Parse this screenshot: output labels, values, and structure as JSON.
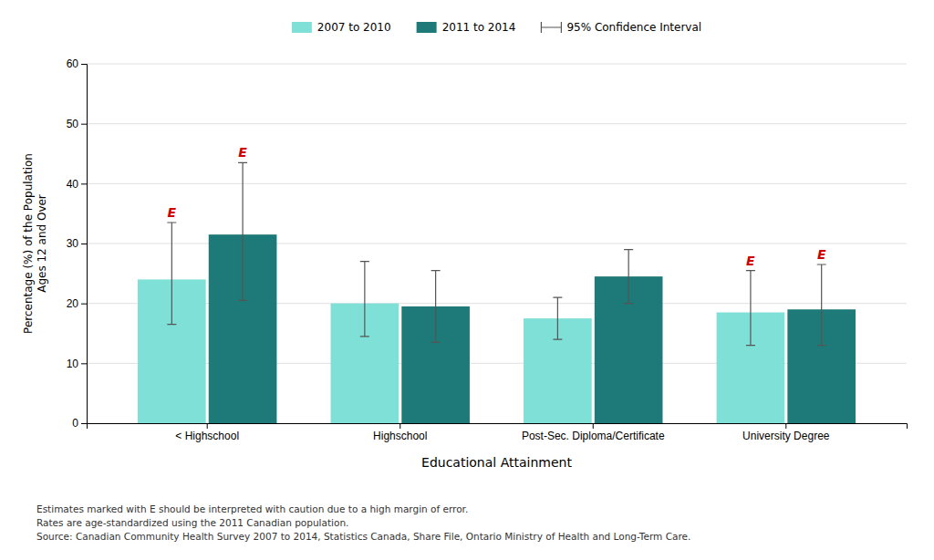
{
  "chart_data": {
    "type": "bar",
    "xlabel": "Educational Attainment",
    "ylabel": "Percentage (%) of the Population\nAges 12 and Over",
    "categories": [
      "< Highschool",
      "Highschool",
      "Post-Sec. Diploma/Certificate",
      "University Degree"
    ],
    "series": [
      {
        "name": "2007 to 2010",
        "color": "#7FE0D8",
        "values": [
          24.0,
          20.0,
          17.5,
          18.5
        ],
        "ci_lower": [
          16.5,
          14.5,
          14.0,
          13.0
        ],
        "ci_upper": [
          33.5,
          27.0,
          21.0,
          25.5
        ],
        "annotations": [
          "E",
          null,
          null,
          "E"
        ]
      },
      {
        "name": "2011 to 2014",
        "color": "#1E7A78",
        "values": [
          31.5,
          19.5,
          24.5,
          19.0
        ],
        "ci_lower": [
          20.5,
          13.5,
          20.0,
          13.0
        ],
        "ci_upper": [
          43.5,
          25.5,
          29.0,
          26.5
        ],
        "annotations": [
          "E",
          null,
          null,
          "E"
        ]
      }
    ],
    "error_bar_label": "95% Confidence Interval",
    "ylim": [
      0,
      60
    ],
    "yticks": [
      0,
      10,
      20,
      30,
      40,
      50,
      60
    ],
    "grid": true,
    "legend": "top",
    "notes": [
      "Estimates marked with E should be interpreted with caution due to a high margin of error.",
      "Rates are age-standardized using the 2011 Canadian population.",
      "Source: Canadian Community Health Survey 2007 to 2014, Statistics Canada, Share File, Ontario Ministry of Health and Long-Term Care."
    ]
  }
}
